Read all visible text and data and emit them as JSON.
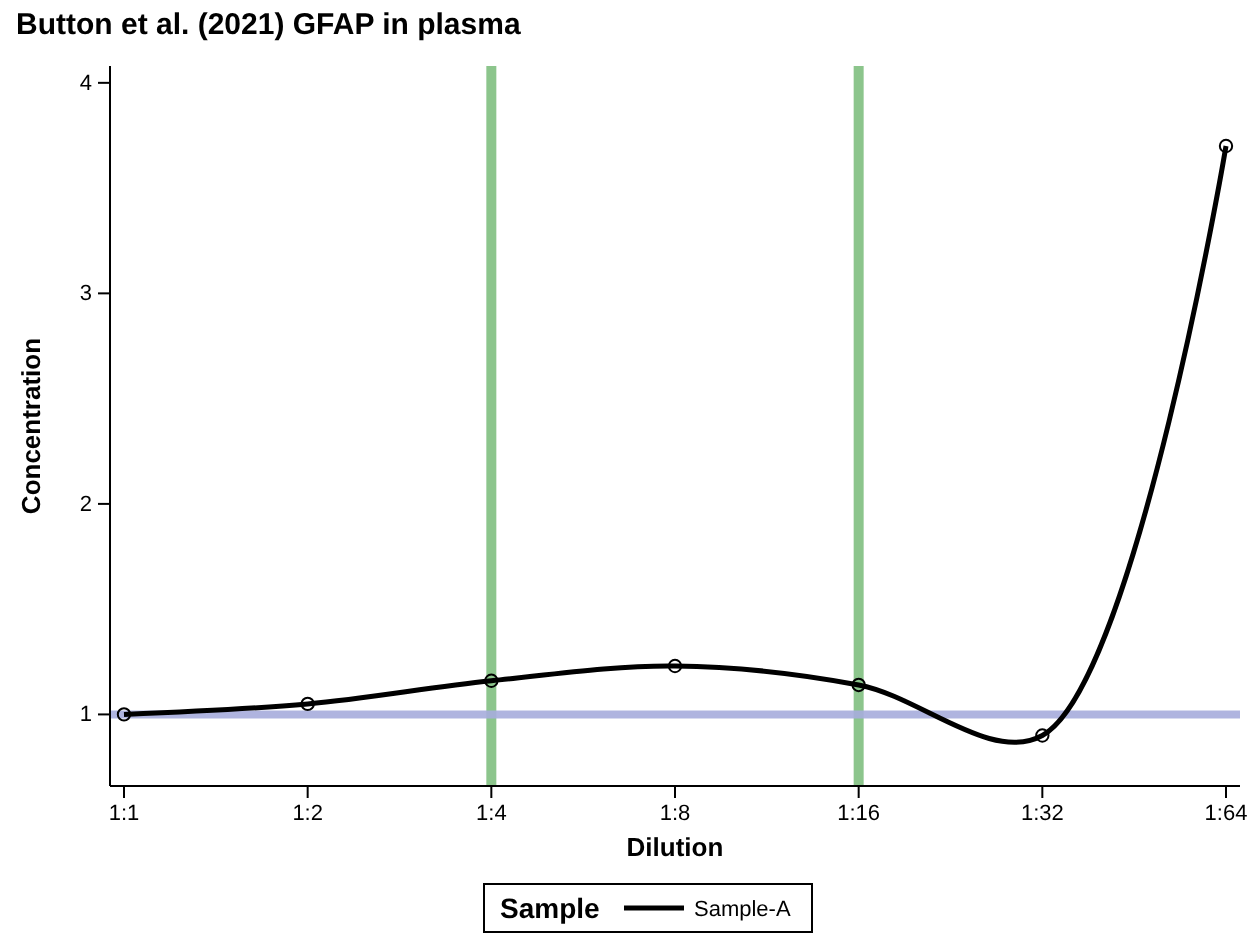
{
  "chart_data": {
    "type": "line",
    "title": "Button et al. (2021) GFAP in plasma",
    "xlabel": "Dilution",
    "ylabel": "Concentration",
    "legend_title": "Sample",
    "legend": "bottom",
    "marker": "circle",
    "line_style": "solid",
    "categories": [
      "1:1",
      "1:2",
      "1:4",
      "1:8",
      "1:16",
      "1:32",
      "1:64"
    ],
    "series": [
      {
        "name": "Sample-A",
        "color": "#000000",
        "values": [
          1.0,
          1.05,
          1.16,
          1.23,
          1.14,
          0.9,
          3.7
        ]
      }
    ],
    "ylim": [
      0.66,
      4.08
    ],
    "yticks": [
      1,
      2,
      3,
      4
    ],
    "ref_lines": [
      {
        "axis": "x",
        "value": "1:4",
        "label": null,
        "color": "#7fbf7f"
      },
      {
        "axis": "x",
        "value": "1:16",
        "label": null,
        "color": "#7fbf7f"
      },
      {
        "axis": "y",
        "value": 1,
        "label": null,
        "color": "#a6acdc"
      }
    ]
  }
}
